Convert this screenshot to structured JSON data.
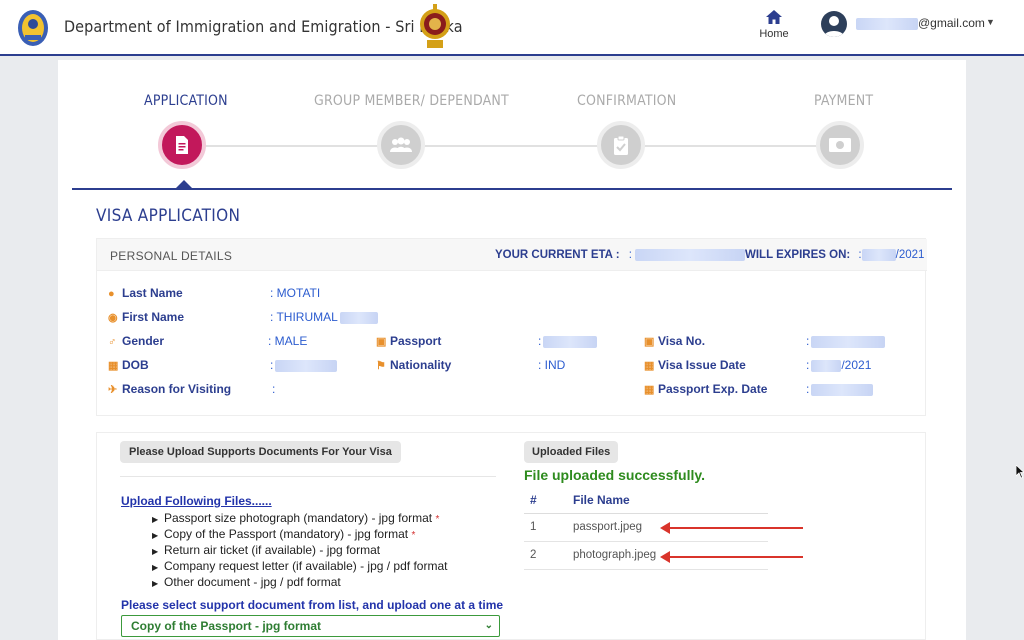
{
  "header": {
    "title": "Department of Immigration and Emigration - Sri Lanka",
    "home_label": "Home",
    "user_email_suffix": "@gmail.com"
  },
  "wizard": {
    "steps": [
      {
        "label": "APPLICATION",
        "icon": "document-icon",
        "active": true
      },
      {
        "label": "GROUP MEMBER/ DEPENDANT",
        "icon": "group-icon",
        "active": false
      },
      {
        "label": "CONFIRMATION",
        "icon": "clipboard-check-icon",
        "active": false
      },
      {
        "label": "PAYMENT",
        "icon": "money-icon",
        "active": false
      }
    ]
  },
  "visa": {
    "title": "VISA APPLICATION",
    "personal": {
      "heading": "PERSONAL DETAILS",
      "eta_label": "YOUR CURRENT ETA :",
      "eta_value": ":",
      "expires_label": "WILL EXPIRES ON:",
      "expires_value": "/2021",
      "expires_prefix": ":",
      "fields": {
        "last_name_label": "Last Name",
        "last_name_value": ": MOTATI",
        "first_name_label": "First Name",
        "first_name_value": ": THIRUMAL",
        "gender_label": "Gender",
        "gender_value": ": MALE",
        "dob_label": "DOB",
        "dob_value": ":",
        "reason_label": "Reason for Visiting",
        "reason_value": ":",
        "passport_label": "Passport",
        "passport_value": ":",
        "nationality_label": "Nationality",
        "nationality_value": ": IND",
        "visa_no_label": "Visa No.",
        "visa_no_value": ":",
        "visa_issue_label": "Visa Issue Date",
        "visa_issue_value": "/2021",
        "visa_issue_prefix": ":",
        "passport_exp_label": "Passport Exp. Date",
        "passport_exp_value": ":"
      }
    }
  },
  "upload": {
    "button_label": "Please Upload Supports Documents For Your Visa",
    "follow_label": "Upload Following Files......",
    "files": [
      {
        "text": "Passport size photograph (mandatory) - jpg format",
        "required": true
      },
      {
        "text": "Copy of the Passport (mandatory) - jpg format",
        "required": true
      },
      {
        "text": "Return air ticket (if available) - jpg format",
        "required": false
      },
      {
        "text": "Company request letter (if available) - jpg / pdf format",
        "required": false
      },
      {
        "text": "Other document - jpg / pdf format",
        "required": false
      }
    ],
    "required_mark": "*",
    "select_hint": "Please select support document from list, and upload one at a time",
    "selected_document": "Copy of the Passport - jpg format"
  },
  "uploaded": {
    "button_label": "Uploaded Files",
    "success_message": "File uploaded successfully.",
    "columns": [
      "#",
      "File Name"
    ],
    "rows": [
      {
        "index": "1",
        "name": "passport.jpeg"
      },
      {
        "index": "2",
        "name": "photograph.jpeg"
      }
    ]
  },
  "colors": {
    "primary": "#2c3e8f",
    "active_step": "#c2185b",
    "success": "#2e8b1e",
    "annotation_arrow": "#d9342b"
  }
}
